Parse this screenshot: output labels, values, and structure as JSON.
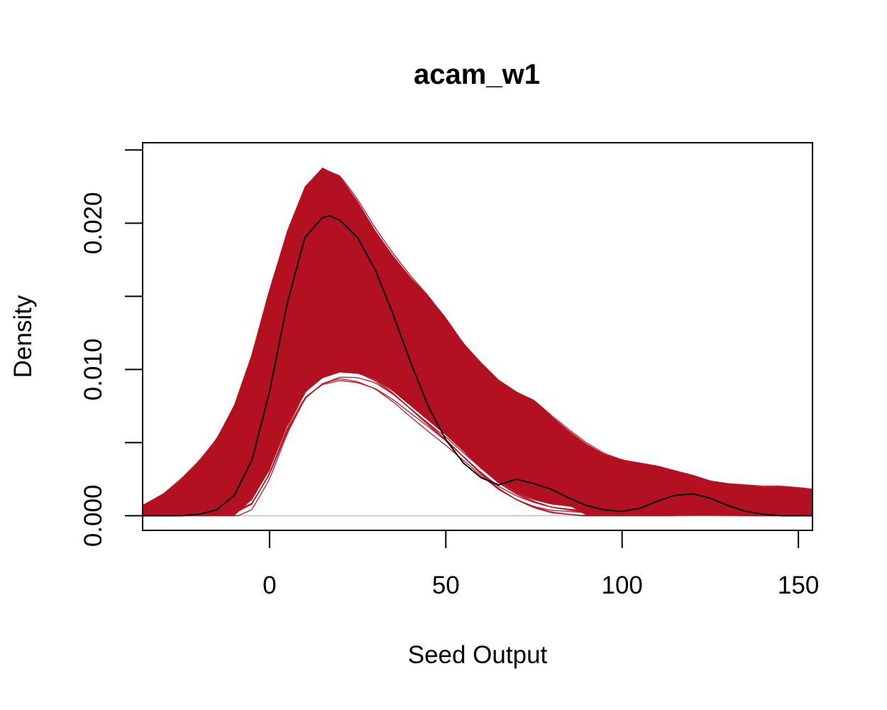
{
  "chart_data": {
    "type": "line",
    "title": "acam_w1",
    "xlabel": "Seed Output",
    "ylabel": "Density",
    "xlim": [
      -36,
      154
    ],
    "ylim": [
      -0.001,
      0.0255
    ],
    "x_ticks": [
      0,
      50,
      100,
      150
    ],
    "y_ticks": [
      0.0,
      0.005,
      0.01,
      0.015,
      0.02,
      0.025
    ],
    "y_tick_labels": [
      "0.000",
      "",
      "0.010",
      "",
      "0.020",
      ""
    ],
    "grid": false,
    "legend": "none",
    "envelope_color": "#b31122",
    "observed_color": "#000000",
    "baseline_color": "#bebebe",
    "replicates": {
      "description_count": 200,
      "lower_envelope": {
        "x": [
          -36,
          -30,
          -25,
          -20,
          -15,
          -10,
          -5,
          0,
          5,
          10,
          15,
          20,
          25,
          30,
          35,
          40,
          45,
          50,
          55,
          60,
          65,
          70,
          75,
          80,
          85,
          90,
          95,
          100,
          105,
          110,
          115,
          120,
          125,
          130,
          135,
          140,
          145,
          150,
          154
        ],
        "y": [
          0,
          0,
          0,
          0,
          0,
          0,
          0.0005,
          0.0025,
          0.0055,
          0.0078,
          0.0088,
          0.0092,
          0.0091,
          0.0087,
          0.0079,
          0.0069,
          0.0059,
          0.0049,
          0.0038,
          0.0027,
          0.0017,
          0.001,
          0.0005,
          0.0002,
          0.0001,
          0,
          0,
          0,
          0,
          0,
          0,
          0,
          0,
          0,
          0,
          0,
          0,
          0,
          0
        ]
      },
      "upper_envelope": {
        "x": [
          -36,
          -30,
          -25,
          -20,
          -15,
          -10,
          -5,
          0,
          5,
          10,
          15,
          20,
          25,
          30,
          35,
          40,
          45,
          50,
          55,
          60,
          65,
          70,
          75,
          80,
          85,
          90,
          95,
          100,
          105,
          110,
          115,
          120,
          125,
          130,
          135,
          140,
          145,
          150,
          154
        ],
        "y": [
          0.0007,
          0.0015,
          0.0025,
          0.0037,
          0.0052,
          0.0075,
          0.011,
          0.0155,
          0.0195,
          0.0225,
          0.0238,
          0.0232,
          0.0215,
          0.0195,
          0.0178,
          0.0163,
          0.015,
          0.0135,
          0.0118,
          0.0105,
          0.0093,
          0.0085,
          0.0079,
          0.0068,
          0.0058,
          0.0049,
          0.0042,
          0.0038,
          0.0036,
          0.0034,
          0.0031,
          0.0028,
          0.0024,
          0.0022,
          0.0021,
          0.002,
          0.002,
          0.0019,
          0.0018
        ]
      }
    },
    "observed": {
      "x": [
        -36,
        -30,
        -25,
        -20,
        -15,
        -10,
        -5,
        0,
        5,
        10,
        15,
        17,
        20,
        25,
        30,
        35,
        40,
        45,
        50,
        55,
        60,
        65,
        70,
        75,
        80,
        85,
        90,
        95,
        100,
        105,
        110,
        115,
        120,
        125,
        130,
        135,
        140,
        145,
        150,
        154
      ],
      "y": [
        0,
        0,
        0,
        0.0001,
        0.0004,
        0.0014,
        0.0038,
        0.0085,
        0.0145,
        0.019,
        0.0204,
        0.0205,
        0.0202,
        0.019,
        0.0168,
        0.0138,
        0.0105,
        0.0075,
        0.0052,
        0.0036,
        0.0026,
        0.0021,
        0.0025,
        0.0022,
        0.0018,
        0.0012,
        0.0007,
        0.0004,
        0.0003,
        0.0005,
        0.001,
        0.0014,
        0.0015,
        0.0012,
        0.0007,
        0.0003,
        0.0001,
        0,
        0,
        0
      ]
    }
  }
}
